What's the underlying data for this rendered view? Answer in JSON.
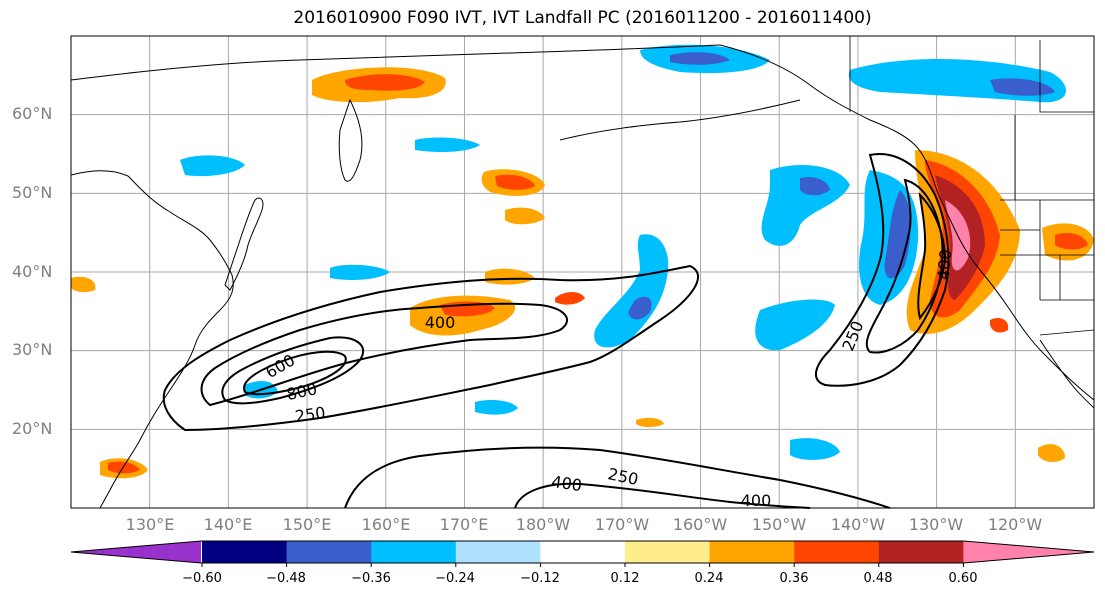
{
  "title": "2016010900 F090 IVT, IVT Landfall PC (2016011200 - 2016011400)",
  "lat_labels": [
    "60°N",
    "50°N",
    "40°N",
    "30°N",
    "20°N"
  ],
  "lon_labels": [
    "130°E",
    "140°E",
    "150°E",
    "160°E",
    "170°E",
    "180°W",
    "170°W",
    "160°W",
    "150°W",
    "140°W",
    "130°W",
    "120°W"
  ],
  "contour_labels": [
    "400",
    "600",
    "800",
    "250",
    "250",
    "400",
    "400",
    "250",
    "400"
  ],
  "colorbar": {
    "ticks": [
      "−0.60",
      "−0.48",
      "−0.36",
      "−0.24",
      "−0.12",
      "0.12",
      "0.24",
      "0.36",
      "0.48",
      "0.60"
    ],
    "colors": [
      "#9932CC",
      "#000080",
      "#3A5FCD",
      "#00BFFF",
      "#B0E2FF",
      "#FFFFFF",
      "#FFEC8B",
      "#FFA500",
      "#FF4500",
      "#B22222",
      "#FF82AB"
    ]
  },
  "chart_data": {
    "type": "map",
    "projection": "PlateCarree",
    "extent": {
      "lon_min": 120,
      "lon_max": 250,
      "lat_min": 10,
      "lat_max": 70
    },
    "gridlines": true,
    "fill_field": "IVT Landfall PC",
    "contour_field": "IVT",
    "contour_levels": [
      250,
      400,
      600,
      800
    ],
    "colorbar_levels": [
      -0.6,
      -0.48,
      -0.36,
      -0.24,
      -0.12,
      0.12,
      0.24,
      0.36,
      0.48,
      0.6
    ]
  }
}
